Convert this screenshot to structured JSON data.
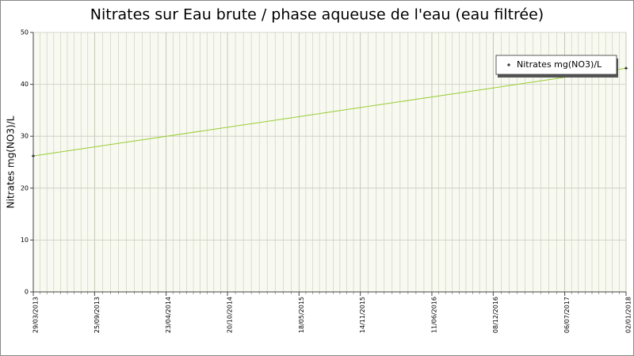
{
  "chart_data": {
    "type": "line",
    "title": "Nitrates sur Eau brute / phase aqueuse de l'eau (eau filtrée)",
    "y_label": "Nitrates mg(NO3)/L",
    "x": [
      "29/03/2013",
      "02/01/2018"
    ],
    "series": [
      {
        "name": "Nitrates mg(NO3)/L",
        "color": "#99cc33",
        "values": [
          26.2,
          43.1
        ]
      }
    ],
    "xlim": [
      "29/03/2013",
      "02/01/2018"
    ],
    "xticks": [
      "29/03/2013",
      "25/09/2013",
      "23/04/2014",
      "20/10/2014",
      "18/05/2015",
      "14/11/2015",
      "11/06/2016",
      "08/12/2016",
      "06/07/2017",
      "02/01/2018"
    ],
    "ylim": [
      0,
      50
    ],
    "yticks": [
      0,
      10,
      20,
      30,
      40,
      50
    ],
    "grid": true,
    "legend": "top-right"
  }
}
